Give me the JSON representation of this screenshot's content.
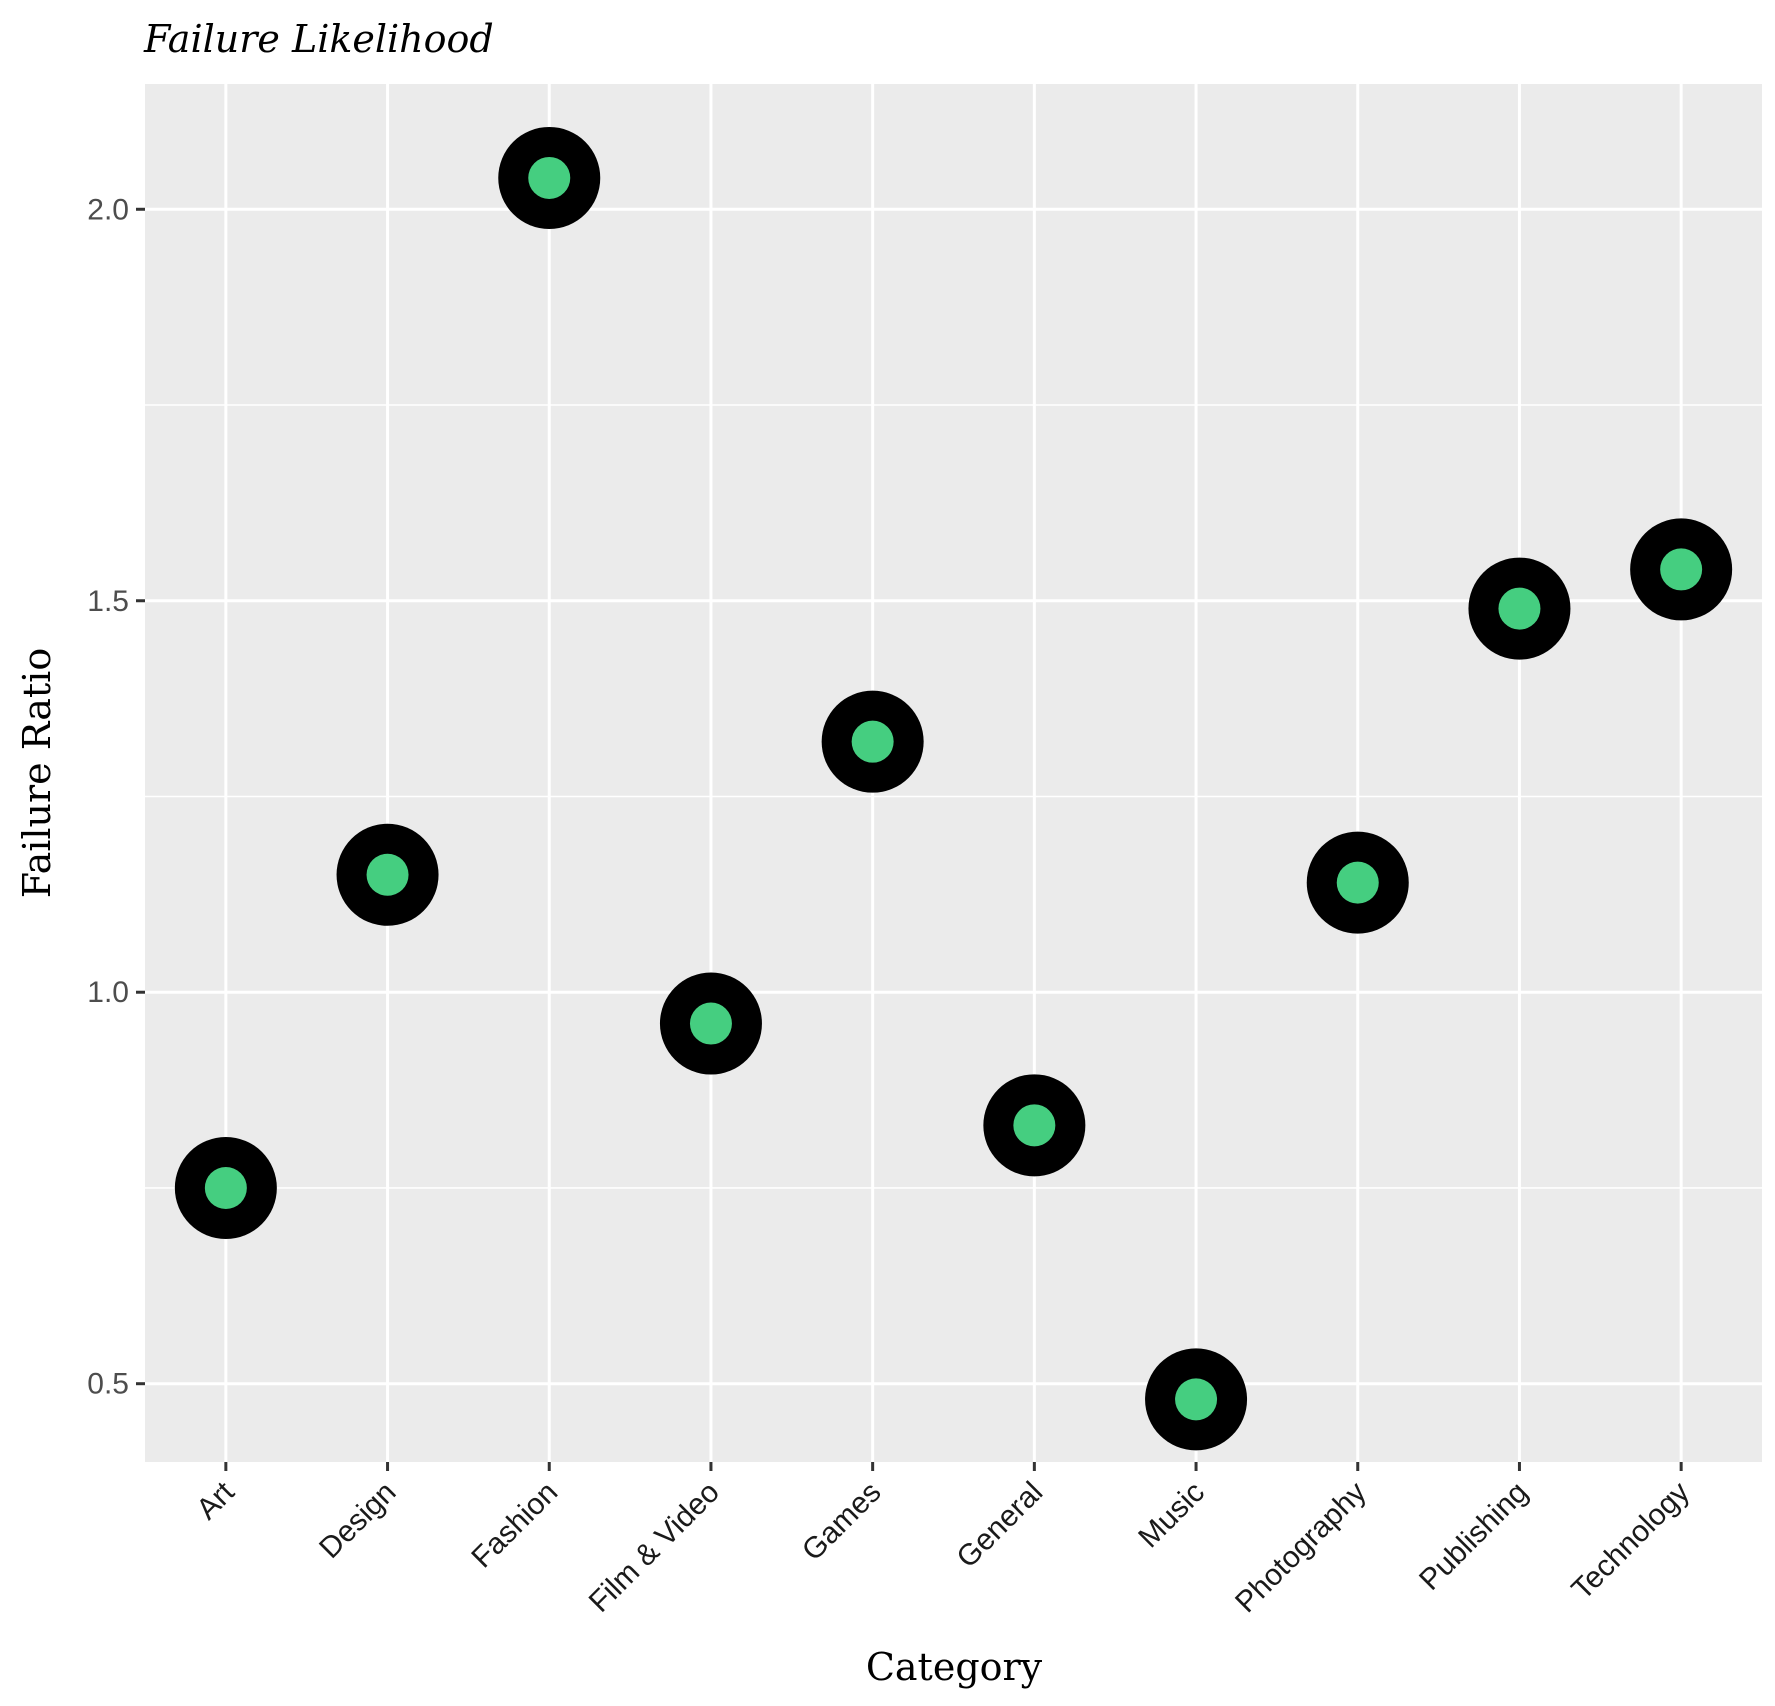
{
  "chart_data": {
    "type": "scatter",
    "title": "Failure Likelihood",
    "xlabel": "Category",
    "ylabel": "Failure Ratio",
    "categories": [
      "Art",
      "Design",
      "Fashion",
      "Film & Video",
      "Games",
      "General",
      "Music",
      "Photography",
      "Publishing",
      "Technology"
    ],
    "values": [
      0.75,
      1.15,
      2.04,
      0.96,
      1.32,
      0.83,
      0.48,
      1.14,
      1.49,
      1.54
    ],
    "ylim": [
      0.4,
      2.16
    ],
    "yticks": [
      0.5,
      1.0,
      1.5,
      2.0
    ],
    "ytick_labels": [
      "0.5",
      "1.0",
      "1.5",
      "2.0"
    ],
    "grid": true,
    "legend": "none",
    "colors": {
      "panel_background": "#EBEBEB",
      "grid": "#FFFFFF",
      "marker_outer": "#000000",
      "marker_inner": "#45CE80"
    }
  }
}
